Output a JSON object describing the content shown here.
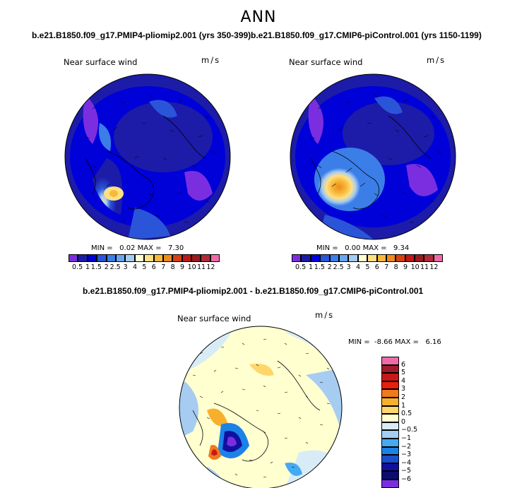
{
  "figure": {
    "title": "ANN",
    "panels": [
      {
        "case": "b.e21.B1850.f09_g17.PMIP4-pliomip2.001 (yrs 350-399)",
        "label": "Near surface wind",
        "units": "m/s",
        "min_text": "MIN =   0.02 MAX =   7.30",
        "min": 0.02,
        "max": 7.3
      },
      {
        "case": "b.e21.B1850.f09_g17.CMIP6-piControl.001 (yrs 1150-1199)",
        "label": "Near surface wind",
        "units": "m/s",
        "min_text": "MIN =   0.00 MAX =   9.34",
        "min": 0.0,
        "max": 9.34
      },
      {
        "case": "b.e21.B1850.f09_g17.PMIP4-pliomip2.001 - b.e21.B1850.f09_g17.CMIP6-piControl.001",
        "label": "Near surface wind",
        "units": "m/s",
        "min_text": "MIN =  -8.66 MAX =   6.16",
        "min": -8.66,
        "max": 6.16
      }
    ],
    "wind_colorbar": {
      "labels": [
        "0.5",
        "1",
        "1.5",
        "2",
        "2.5",
        "3",
        "4",
        "5",
        "6",
        "7",
        "8",
        "9",
        "10",
        "11",
        "12"
      ],
      "colors": [
        "#7b2ee0",
        "#1c1ca8",
        "#0000d8",
        "#2a55d8",
        "#3b7ee8",
        "#6aa6ee",
        "#a6ccf2",
        "#ffffd2",
        "#ffe082",
        "#f8b93a",
        "#ef8a1c",
        "#d64012",
        "#c01818",
        "#981c1c",
        "#b02a3a",
        "#f06aa8"
      ]
    },
    "diff_colorbar": {
      "labels": [
        "6",
        "5",
        "4",
        "3",
        "2",
        "1",
        "0.5",
        "0",
        "−0.5",
        "−1",
        "−2",
        "−3",
        "−4",
        "−5",
        "−6"
      ],
      "colors": [
        "#f06aa8",
        "#a01c2a",
        "#c81818",
        "#e8200c",
        "#ef7a1c",
        "#f8b02c",
        "#ffd66a",
        "#ffffd0",
        "#d8ecf8",
        "#a6ccf2",
        "#44aaf2",
        "#1c82e8",
        "#1a50d0",
        "#1010a0",
        "#0c0c70",
        "#7b2ee0"
      ]
    }
  }
}
